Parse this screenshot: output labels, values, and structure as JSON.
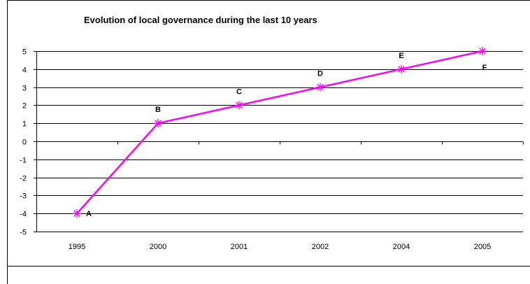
{
  "chart_data": {
    "type": "line",
    "title": "Evolution of local governance during the last 10 years",
    "xlabel": "",
    "ylabel": "",
    "categories": [
      "1995",
      "2000",
      "2001",
      "2002",
      "2004",
      "2005"
    ],
    "y_ticks": [
      "5",
      "4",
      "3",
      "2",
      "1",
      "0",
      "-1",
      "-2",
      "-3",
      "-4",
      "-5"
    ],
    "ylim": [
      -5,
      5
    ],
    "grid": "horizontal",
    "legend": "none",
    "series": [
      {
        "values": [
          -4,
          1,
          2,
          3,
          4,
          5
        ],
        "labels": [
          "A",
          "B",
          "C",
          "D",
          "E",
          "F"
        ],
        "color": "#ff00ff",
        "marker": "asterisk"
      }
    ]
  }
}
